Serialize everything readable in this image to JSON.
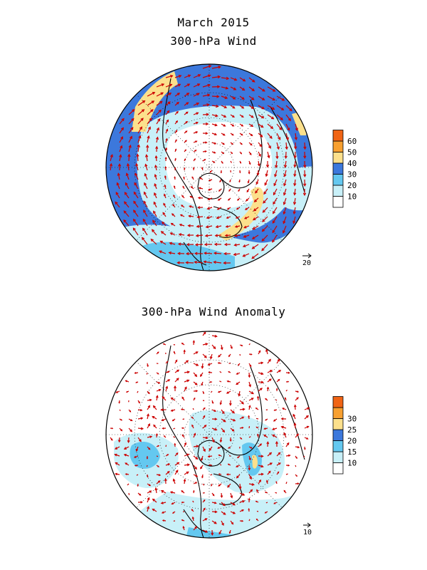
{
  "titles": {
    "main": "March 2015",
    "panel1": "300-hPa Wind",
    "panel2": "300-hPa Wind Anomaly"
  },
  "panel1": {
    "colorbar": {
      "labels": [
        "10",
        "20",
        "30",
        "40",
        "50",
        "60"
      ],
      "colors": [
        "#ffffff",
        "#c8f0f8",
        "#64c8f0",
        "#3c78dc",
        "#fce08c",
        "#f8a030",
        "#f06414"
      ]
    },
    "reference_vector_label": "20"
  },
  "panel2": {
    "colorbar": {
      "labels": [
        "10",
        "15",
        "20",
        "25",
        "30"
      ],
      "colors": [
        "#ffffff",
        "#c8f0f8",
        "#64c8f0",
        "#3c78dc",
        "#fce08c",
        "#f8a030",
        "#f06414"
      ]
    },
    "reference_vector_label": "10"
  },
  "colors": {
    "vector": "#cc0000",
    "coast": "#000000",
    "grid": "#000000"
  }
}
